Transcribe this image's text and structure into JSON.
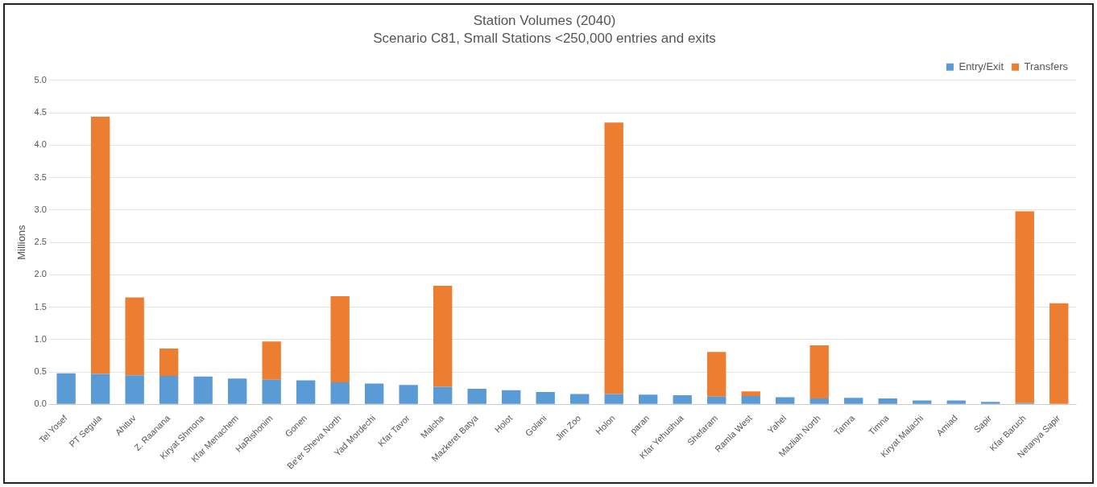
{
  "chart_data": {
    "type": "bar",
    "title": "Station Volumes (2040)",
    "subtitle": "Scenario C81, Small Stations <250,000 entries and exits",
    "ylabel": "Millions",
    "categories": [
      "Tel Yosef",
      "PT Segula",
      "Ahituv",
      "Z. Raanana",
      "Kiryat Shmona",
      "Kfar Menachem",
      "HaRishonim",
      "Gonen",
      "Be'er Sheva North",
      "Yad Mordechi",
      "Kfar Tavor",
      "Malcha",
      "Mazkeret Batya",
      "Holot",
      "Golani",
      "Jim Zoo",
      "Holon",
      "paran",
      "Kfar Yehushua",
      "Shefaram",
      "Ramla West",
      "Yahel",
      "Mazliah North",
      "Tamra",
      "Timna",
      "Kiryat Malachi",
      "Amiad",
      "Sapir",
      "Kfar Baruch",
      "Netanya Sapir"
    ],
    "series": [
      {
        "name": "Entry/Exit",
        "color": "#5b9bd5",
        "values": [
          0.48,
          0.47,
          0.45,
          0.44,
          0.43,
          0.4,
          0.38,
          0.37,
          0.34,
          0.32,
          0.3,
          0.27,
          0.24,
          0.22,
          0.19,
          0.16,
          0.16,
          0.15,
          0.14,
          0.12,
          0.13,
          0.11,
          0.09,
          0.1,
          0.09,
          0.06,
          0.06,
          0.04,
          0.02,
          0
        ]
      },
      {
        "name": "Transfers",
        "color": "#ed7d31",
        "values": [
          0,
          3.97,
          1.2,
          0.42,
          0,
          0,
          0.59,
          0,
          1.33,
          0,
          0,
          1.56,
          0,
          0,
          0,
          0,
          4.19,
          0,
          0,
          0.69,
          0.07,
          0,
          0.82,
          0,
          0,
          0,
          0,
          0,
          2.96,
          1.56
        ]
      }
    ],
    "stacked": true,
    "ylim": [
      0,
      5
    ],
    "yticks": [
      {
        "value": 0,
        "label": "0.0"
      },
      {
        "value": 0.5,
        "label": "0.5"
      },
      {
        "value": 1,
        "label": "1.0"
      },
      {
        "value": 1.5,
        "label": "1.5"
      },
      {
        "value": 2,
        "label": "2.0"
      },
      {
        "value": 2.5,
        "label": "2.5"
      },
      {
        "value": 3,
        "label": "3.0"
      },
      {
        "value": 3.5,
        "label": "3.5"
      },
      {
        "value": 4,
        "label": "4.0"
      },
      {
        "value": 4.5,
        "label": "4.5"
      },
      {
        "value": 5,
        "label": "5.0"
      }
    ],
    "grid": "y",
    "legend": "top right"
  }
}
